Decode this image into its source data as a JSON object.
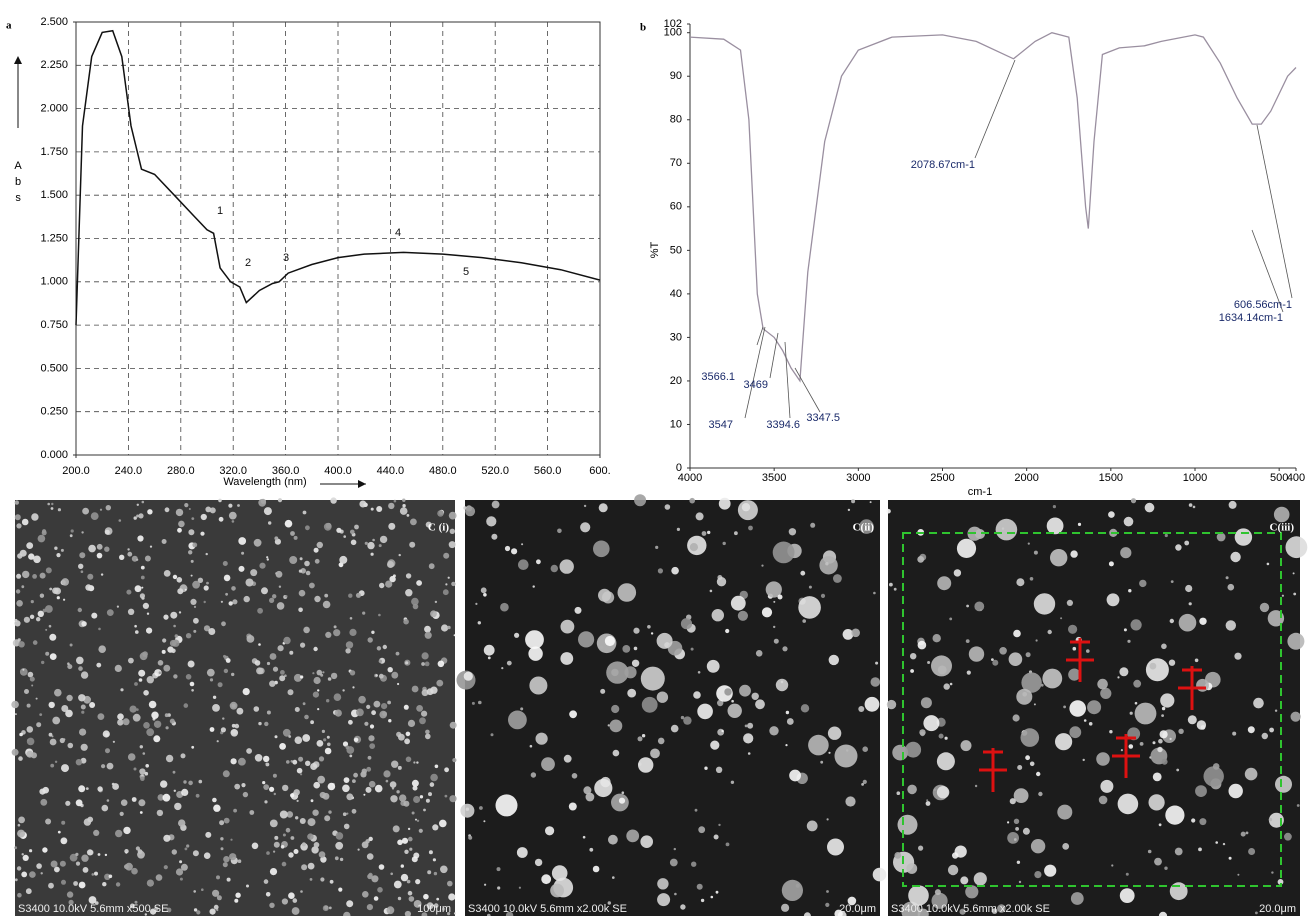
{
  "chart_data": [
    {
      "type": "line",
      "panel": "a",
      "x_label": "Wavelength (nm)",
      "y_label": "Abs",
      "grid": true,
      "color": "#111111",
      "xlim": [
        200,
        600
      ],
      "ylim": [
        0,
        2.5
      ],
      "xticks": [
        {
          "value": 200,
          "label": "200.0"
        },
        {
          "value": 240,
          "label": "240.0"
        },
        {
          "value": 280,
          "label": "280.0"
        },
        {
          "value": 320,
          "label": "320.0"
        },
        {
          "value": 360,
          "label": "360.0"
        },
        {
          "value": 400,
          "label": "400.0"
        },
        {
          "value": 440,
          "label": "440.0"
        },
        {
          "value": 480,
          "label": "480.0"
        },
        {
          "value": 520,
          "label": "520.0"
        },
        {
          "value": 560,
          "label": "560.0"
        },
        {
          "value": 600,
          "label": "600."
        }
      ],
      "yticks": [
        {
          "value": 0,
          "label": "0.000"
        },
        {
          "value": 0.25,
          "label": "0.250"
        },
        {
          "value": 0.5,
          "label": "0.500"
        },
        {
          "value": 0.75,
          "label": "0.750"
        },
        {
          "value": 1,
          "label": "1.000"
        },
        {
          "value": 1.25,
          "label": "1.250"
        },
        {
          "value": 1.5,
          "label": "1.500"
        },
        {
          "value": 1.75,
          "label": "1.750"
        },
        {
          "value": 2,
          "label": "2.000"
        },
        {
          "value": 2.25,
          "label": "2.250"
        },
        {
          "value": 2.5,
          "label": "2.500"
        }
      ],
      "x": [
        200,
        205,
        212,
        220,
        228,
        235,
        242,
        250,
        260,
        275,
        290,
        300,
        305,
        310,
        318,
        325,
        330,
        340,
        350,
        355,
        362,
        380,
        400,
        420,
        450,
        480,
        510,
        540,
        570,
        600
      ],
      "values": [
        0.75,
        1.9,
        2.3,
        2.44,
        2.45,
        2.3,
        1.9,
        1.65,
        1.62,
        1.5,
        1.38,
        1.3,
        1.28,
        1.08,
        1.0,
        0.97,
        0.88,
        0.95,
        0.99,
        1.0,
        1.05,
        1.1,
        1.14,
        1.16,
        1.17,
        1.16,
        1.14,
        1.11,
        1.07,
        1.01
      ],
      "annotations": [
        "1",
        "2",
        "3",
        "4",
        "5"
      ]
    },
    {
      "type": "line",
      "panel": "b",
      "x_label": "cm-1",
      "y_label": "%T",
      "grid": false,
      "color": "#9a8fa0",
      "xlim": [
        4000,
        400
      ],
      "ylim": [
        0,
        102
      ],
      "xticks": [
        4000,
        3500,
        3000,
        2500,
        2000,
        1500,
        1000,
        500,
        400
      ],
      "yticks": [
        0,
        10,
        20,
        30,
        40,
        50,
        60,
        70,
        80,
        90,
        100,
        102
      ],
      "x": [
        4000,
        3800,
        3700,
        3650,
        3600,
        3566,
        3500,
        3450,
        3400,
        3347,
        3300,
        3200,
        3100,
        3000,
        2800,
        2500,
        2300,
        2078,
        1950,
        1850,
        1750,
        1700,
        1650,
        1634,
        1600,
        1550,
        1450,
        1300,
        1200,
        1000,
        950,
        850,
        750,
        660,
        606,
        550,
        450,
        400
      ],
      "values": [
        99,
        98.5,
        96,
        80,
        40,
        32,
        30,
        27,
        23,
        20,
        45,
        75,
        90,
        96,
        99,
        99.5,
        98,
        94,
        98,
        100,
        99,
        85,
        60,
        55,
        75,
        95,
        96.5,
        97,
        98,
        99.5,
        99,
        93,
        85,
        79,
        79,
        82,
        90,
        92
      ],
      "annotations": [
        "3566.1",
        "3547",
        "3469",
        "3394.6",
        "3347.5",
        "2078.67cm-1",
        "1634.14cm-1",
        "606.56cm-1"
      ]
    }
  ],
  "images": [
    {
      "label": "C (i)",
      "caption": "S3400 10.0kV 5.6mm x500 SE",
      "scale": "100μm"
    },
    {
      "label": "C(ii)",
      "caption": "S3400 10.0kV 5.6mm x2.00k SE",
      "scale": "20.0μm"
    },
    {
      "label": "C(iii)",
      "caption": "S3400 10.0kV 5.6mm x2.00k SE",
      "scale": "20.0μm"
    }
  ]
}
